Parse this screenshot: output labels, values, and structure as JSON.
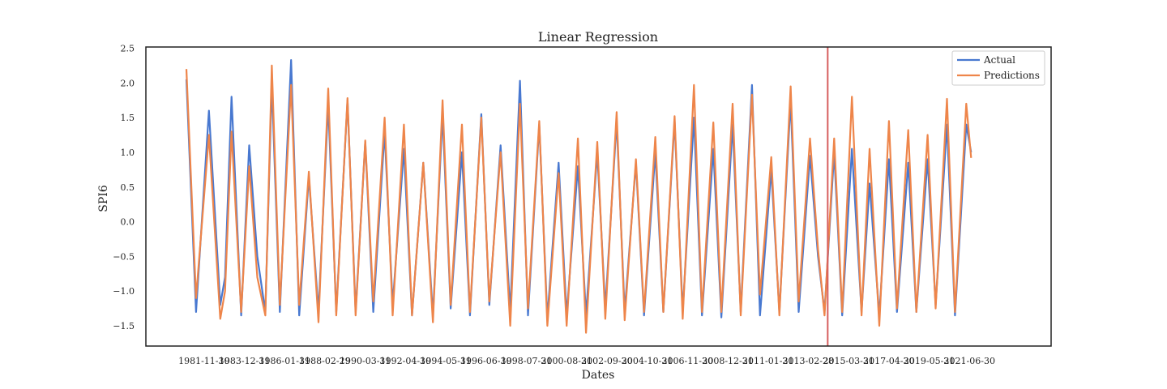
{
  "chart_data": {
    "type": "line",
    "title": "Linear Regression",
    "xlabel": "Dates",
    "ylabel": "SPI6",
    "ylim": [
      -1.8,
      2.5
    ],
    "yticks": [
      -1.5,
      -1.0,
      -0.5,
      0.0,
      0.5,
      1.0,
      1.5,
      2.0,
      2.5
    ],
    "ytick_labels": [
      "−1.5",
      "−1.0",
      "−0.5",
      "0.0",
      "0.5",
      "1.0",
      "1.5",
      "2.0",
      "2.5"
    ],
    "x_start": "1981-01",
    "x_end": "2023-08",
    "xticks": [
      "1981-11-30",
      "1983-12-31",
      "1986-01-31",
      "1988-02-29",
      "1990-03-31",
      "1992-04-30",
      "1994-05-31",
      "1996-06-30",
      "1998-07-31",
      "2000-08-31",
      "2002-09-30",
      "2004-10-31",
      "2006-11-30",
      "2008-12-31",
      "2011-01-31",
      "2013-02-28",
      "2015-03-31",
      "2017-04-30",
      "2019-05-31",
      "2021-06-30"
    ],
    "vline": {
      "x": "2014-03",
      "color": "#d65f5f"
    },
    "legend_position": "top-right",
    "grid": false,
    "series": [
      {
        "name": "Actual",
        "color": "#4878d0",
        "points": [
          [
            "1981-01",
            2.05
          ],
          [
            "1981-07",
            -1.3
          ],
          [
            "1982-03",
            1.6
          ],
          [
            "1982-10",
            -1.2
          ],
          [
            "1983-01",
            -0.8
          ],
          [
            "1983-05",
            1.8
          ],
          [
            "1983-11",
            -1.35
          ],
          [
            "1984-04",
            1.1
          ],
          [
            "1984-09",
            -0.5
          ],
          [
            "1985-02",
            -1.3
          ],
          [
            "1985-06",
            2.0
          ],
          [
            "1985-11",
            -1.3
          ],
          [
            "1986-06",
            2.33
          ],
          [
            "1986-11",
            -1.35
          ],
          [
            "1987-05",
            0.65
          ],
          [
            "1987-11",
            -1.3
          ],
          [
            "1988-05",
            1.7
          ],
          [
            "1988-10",
            -1.3
          ],
          [
            "1989-05",
            1.75
          ],
          [
            "1989-10",
            -1.3
          ],
          [
            "1990-04",
            1.15
          ],
          [
            "1990-09",
            -1.3
          ],
          [
            "1991-04",
            1.3
          ],
          [
            "1991-09",
            -1.2
          ],
          [
            "1992-04",
            1.05
          ],
          [
            "1992-09",
            -1.35
          ],
          [
            "1993-04",
            0.85
          ],
          [
            "1993-10",
            -1.35
          ],
          [
            "1994-04",
            1.55
          ],
          [
            "1994-09",
            -1.25
          ],
          [
            "1995-04",
            1.0
          ],
          [
            "1995-09",
            -1.35
          ],
          [
            "1996-04",
            1.55
          ],
          [
            "1996-09",
            -1.2
          ],
          [
            "1997-04",
            1.1
          ],
          [
            "1997-10",
            -1.3
          ],
          [
            "1998-04",
            2.03
          ],
          [
            "1998-09",
            -1.35
          ],
          [
            "1999-04",
            1.4
          ],
          [
            "1999-09",
            -1.4
          ],
          [
            "2000-04",
            0.85
          ],
          [
            "2000-09",
            -1.35
          ],
          [
            "2001-04",
            0.8
          ],
          [
            "2001-09",
            -1.35
          ],
          [
            "2002-04",
            1.0
          ],
          [
            "2002-09",
            -1.25
          ],
          [
            "2003-04",
            1.45
          ],
          [
            "2003-09",
            -1.3
          ],
          [
            "2004-04",
            0.85
          ],
          [
            "2004-09",
            -1.35
          ],
          [
            "2005-04",
            1.0
          ],
          [
            "2005-09",
            -1.3
          ],
          [
            "2006-04",
            1.45
          ],
          [
            "2006-09",
            -1.3
          ],
          [
            "2007-04",
            1.5
          ],
          [
            "2007-09",
            -1.35
          ],
          [
            "2008-04",
            1.05
          ],
          [
            "2008-09",
            -1.38
          ],
          [
            "2009-04",
            1.4
          ],
          [
            "2009-09",
            -1.3
          ],
          [
            "2010-04",
            1.97
          ],
          [
            "2010-09",
            -1.35
          ],
          [
            "2011-04",
            0.75
          ],
          [
            "2011-09",
            -1.3
          ],
          [
            "2012-04",
            1.75
          ],
          [
            "2012-09",
            -1.3
          ],
          [
            "2013-04",
            0.95
          ],
          [
            "2013-09",
            -0.5
          ],
          [
            "2014-01",
            -1.3
          ],
          [
            "2014-07",
            1.0
          ],
          [
            "2014-12",
            -1.35
          ],
          [
            "2015-06",
            1.05
          ],
          [
            "2015-12",
            -1.3
          ],
          [
            "2016-05",
            0.55
          ],
          [
            "2016-11",
            -1.35
          ],
          [
            "2017-05",
            0.9
          ],
          [
            "2017-10",
            -1.3
          ],
          [
            "2018-05",
            0.85
          ],
          [
            "2018-10",
            -1.3
          ],
          [
            "2019-05",
            0.9
          ],
          [
            "2019-10",
            -1.2
          ],
          [
            "2020-05",
            1.4
          ],
          [
            "2020-10",
            -1.35
          ],
          [
            "2021-05",
            1.4
          ],
          [
            "2021-08",
            1.0
          ]
        ]
      },
      {
        "name": "Predictions",
        "color": "#ee854a",
        "points": [
          [
            "1981-01",
            2.2
          ],
          [
            "1981-07",
            -1.1
          ],
          [
            "1982-03",
            1.25
          ],
          [
            "1982-10",
            -1.4
          ],
          [
            "1983-01",
            -1.0
          ],
          [
            "1983-05",
            1.3
          ],
          [
            "1983-11",
            -1.3
          ],
          [
            "1984-04",
            0.8
          ],
          [
            "1984-09",
            -0.8
          ],
          [
            "1985-02",
            -1.35
          ],
          [
            "1985-06",
            2.25
          ],
          [
            "1985-11",
            -1.2
          ],
          [
            "1986-06",
            1.97
          ],
          [
            "1986-11",
            -1.2
          ],
          [
            "1987-05",
            0.72
          ],
          [
            "1987-11",
            -1.45
          ],
          [
            "1988-05",
            1.92
          ],
          [
            "1988-10",
            -1.35
          ],
          [
            "1989-05",
            1.78
          ],
          [
            "1989-10",
            -1.35
          ],
          [
            "1990-04",
            1.17
          ],
          [
            "1990-09",
            -1.15
          ],
          [
            "1991-04",
            1.5
          ],
          [
            "1991-09",
            -1.35
          ],
          [
            "1992-04",
            1.4
          ],
          [
            "1992-09",
            -1.35
          ],
          [
            "1993-04",
            0.85
          ],
          [
            "1993-10",
            -1.45
          ],
          [
            "1994-04",
            1.75
          ],
          [
            "1994-09",
            -1.2
          ],
          [
            "1995-04",
            1.4
          ],
          [
            "1995-09",
            -1.3
          ],
          [
            "1996-04",
            1.5
          ],
          [
            "1996-09",
            -1.15
          ],
          [
            "1997-04",
            1.0
          ],
          [
            "1997-10",
            -1.5
          ],
          [
            "1998-04",
            1.7
          ],
          [
            "1998-09",
            -1.25
          ],
          [
            "1999-04",
            1.45
          ],
          [
            "1999-09",
            -1.5
          ],
          [
            "2000-04",
            0.7
          ],
          [
            "2000-09",
            -1.5
          ],
          [
            "2001-04",
            1.2
          ],
          [
            "2001-09",
            -1.6
          ],
          [
            "2002-04",
            1.15
          ],
          [
            "2002-09",
            -1.4
          ],
          [
            "2003-04",
            1.58
          ],
          [
            "2003-09",
            -1.42
          ],
          [
            "2004-04",
            0.9
          ],
          [
            "2004-09",
            -1.3
          ],
          [
            "2005-04",
            1.22
          ],
          [
            "2005-09",
            -1.3
          ],
          [
            "2006-04",
            1.52
          ],
          [
            "2006-09",
            -1.4
          ],
          [
            "2007-04",
            1.97
          ],
          [
            "2007-09",
            -1.3
          ],
          [
            "2008-04",
            1.43
          ],
          [
            "2008-09",
            -1.3
          ],
          [
            "2009-04",
            1.7
          ],
          [
            "2009-09",
            -1.35
          ],
          [
            "2010-04",
            1.83
          ],
          [
            "2010-09",
            -1.05
          ],
          [
            "2011-04",
            0.93
          ],
          [
            "2011-09",
            -1.35
          ],
          [
            "2012-04",
            1.95
          ],
          [
            "2012-09",
            -1.15
          ],
          [
            "2013-04",
            1.2
          ],
          [
            "2013-09",
            -0.4
          ],
          [
            "2014-01",
            -1.35
          ],
          [
            "2014-07",
            1.2
          ],
          [
            "2014-12",
            -1.3
          ],
          [
            "2015-06",
            1.8
          ],
          [
            "2015-12",
            -1.35
          ],
          [
            "2016-05",
            1.05
          ],
          [
            "2016-11",
            -1.5
          ],
          [
            "2017-05",
            1.45
          ],
          [
            "2017-10",
            -1.25
          ],
          [
            "2018-05",
            1.32
          ],
          [
            "2018-10",
            -1.3
          ],
          [
            "2019-05",
            1.25
          ],
          [
            "2019-10",
            -1.25
          ],
          [
            "2020-05",
            1.77
          ],
          [
            "2020-10",
            -1.3
          ],
          [
            "2021-05",
            1.7
          ],
          [
            "2021-08",
            0.92
          ]
        ]
      }
    ]
  }
}
